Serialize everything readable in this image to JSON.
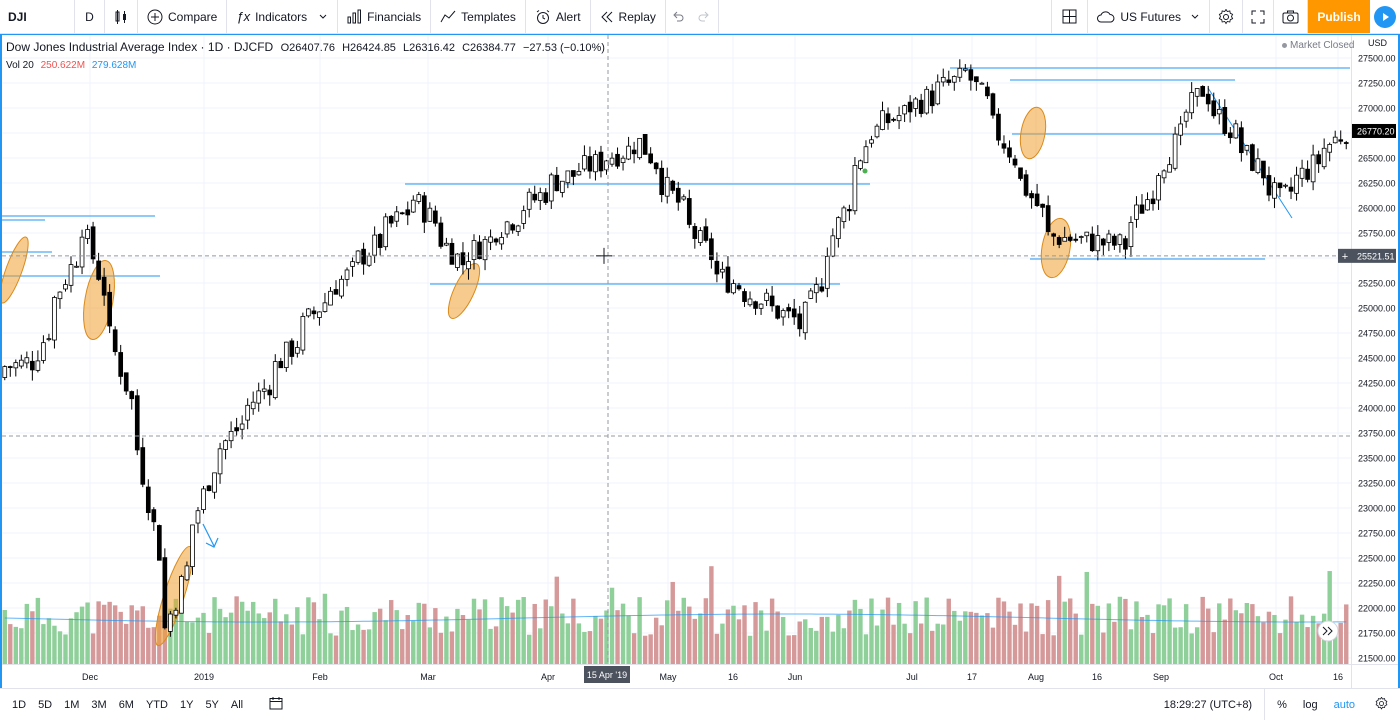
{
  "toolbar": {
    "symbol": "DJI",
    "interval": "D",
    "compare": "Compare",
    "indicators": "Indicators",
    "financials": "Financials",
    "templates": "Templates",
    "alert": "Alert",
    "replay": "Replay",
    "session": "US Futures",
    "publish": "Publish"
  },
  "legend": {
    "title": "Dow Jones Industrial Average Index · 1D · DJCFD",
    "open_label": "O",
    "open": "26407.76",
    "high_label": "H",
    "high": "26424.85",
    "low_label": "L",
    "low": "26316.42",
    "close_label": "C",
    "close": "26384.77",
    "change": "−27.53 (−0.10%)",
    "vol_label": "Vol 20",
    "vol_value": "250.622M",
    "vol_ma": "279.628M"
  },
  "market_status": "Market Closed",
  "currency": "USD",
  "bottom": {
    "ranges": [
      "1D",
      "5D",
      "1M",
      "3M",
      "6M",
      "YTD",
      "1Y",
      "5Y",
      "All"
    ],
    "time": "18:29:27 (UTC+8)",
    "percent": "%",
    "log": "log",
    "auto": "auto"
  },
  "colors": {
    "up_volume": "#8fcf9a",
    "down_volume": "#d6999a",
    "accent": "#2196f3",
    "publish": "#ff9800",
    "highlight": "#f0a030"
  },
  "chart_data": {
    "type": "candlestick",
    "symbol": "DJI",
    "timeframe": "1D",
    "y_axis": {
      "ticks": [
        21500,
        21750,
        22000,
        22250,
        22500,
        22750,
        23000,
        23250,
        23500,
        23750,
        24000,
        24250,
        24500,
        24750,
        25000,
        25250,
        25500,
        25750,
        26000,
        26250,
        26500,
        26750,
        27000,
        27250,
        27500
      ],
      "ylim": [
        21500,
        27650
      ]
    },
    "x_axis_labels": [
      "Dec",
      "2019",
      "Feb",
      "Mar",
      "Apr",
      "15 Apr '19",
      "May",
      "16",
      "Jun",
      "Jul",
      "17",
      "Aug",
      "16",
      "Sep",
      "Oct",
      "16"
    ],
    "price_labels": {
      "last": 26770.2,
      "crosshair": 25521.51
    },
    "series": [
      {
        "name": "Price",
        "points": [
          {
            "date": "2018-11-20",
            "close": 24465
          },
          {
            "date": "2018-12-03",
            "close": 25826
          },
          {
            "date": "2018-12-17",
            "close": 23592
          },
          {
            "date": "2018-12-24",
            "close": 21792
          },
          {
            "date": "2019-01-04",
            "close": 23433
          },
          {
            "date": "2019-02-01",
            "close": 25063
          },
          {
            "date": "2019-02-25",
            "close": 26091
          },
          {
            "date": "2019-03-08",
            "close": 25450
          },
          {
            "date": "2019-04-01",
            "close": 26258
          },
          {
            "date": "2019-04-23",
            "close": 26656
          },
          {
            "date": "2019-05-13",
            "close": 25324
          },
          {
            "date": "2019-06-03",
            "close": 24819
          },
          {
            "date": "2019-06-20",
            "close": 26753
          },
          {
            "date": "2019-07-15",
            "close": 27359
          },
          {
            "date": "2019-08-05",
            "close": 25717
          },
          {
            "date": "2019-08-23",
            "close": 25628
          },
          {
            "date": "2019-09-12",
            "close": 27182
          },
          {
            "date": "2019-10-02",
            "close": 26078
          },
          {
            "date": "2019-10-18",
            "close": 26770
          }
        ]
      }
    ],
    "volume": {
      "name": "Vol 20",
      "last": "250.622M",
      "ma": "279.628M"
    },
    "grid": true,
    "legend_position": "top-left"
  }
}
